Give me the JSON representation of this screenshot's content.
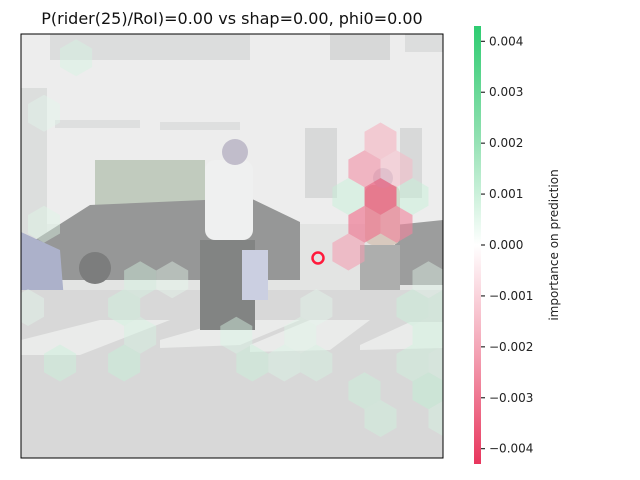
{
  "chart_data": {
    "type": "heatmap",
    "title": "P(rider(25)/RoI)=0.00 vs shap=0.00, phi0=0.00",
    "xlabel": "",
    "ylabel": "",
    "colorbar": {
      "label": "importance on prediction",
      "range": [
        -0.0043,
        0.0043
      ],
      "ticks": [
        "0.004",
        "0.003",
        "0.002",
        "0.001",
        "0.000",
        "−0.001",
        "−0.002",
        "−0.003",
        "−0.004"
      ],
      "tick_values": [
        0.004,
        0.003,
        0.002,
        0.001,
        0.0,
        -0.001,
        -0.002,
        -0.003,
        -0.004
      ],
      "colors": {
        "positive": "#2ecc71",
        "neutral": "#ffffff",
        "negative": "#e8365d"
      }
    },
    "background": "street scene with pedestrians on a crosswalk",
    "marker": {
      "label": "RoI center",
      "color": "#ff1a3c"
    },
    "hex_cells": [
      {
        "col": 1,
        "row": 1,
        "value": 0.0009
      },
      {
        "col": 0,
        "row": 3,
        "value": 0.0006
      },
      {
        "col": 13,
        "row": 3,
        "value": 0.0008
      },
      {
        "col": 11,
        "row": 4,
        "value": -0.0018
      },
      {
        "col": 10,
        "row": 5,
        "value": -0.0024
      },
      {
        "col": 11,
        "row": 5,
        "value": -0.0015
      },
      {
        "col": 10,
        "row": 6,
        "value": 0.0012
      },
      {
        "col": 11,
        "row": 6,
        "value": -0.0035
      },
      {
        "col": 12,
        "row": 6,
        "value": 0.0012
      },
      {
        "col": 0,
        "row": 7,
        "value": 0.0007
      },
      {
        "col": 10,
        "row": 7,
        "value": -0.003
      },
      {
        "col": 11,
        "row": 7,
        "value": -0.0026
      },
      {
        "col": 13,
        "row": 7,
        "value": 0.0004
      },
      {
        "col": 10,
        "row": 8,
        "value": -0.0021
      },
      {
        "col": 3,
        "row": 9,
        "value": 0.0009
      },
      {
        "col": 4,
        "row": 9,
        "value": 0.0005
      },
      {
        "col": 12,
        "row": 9,
        "value": 0.0006
      },
      {
        "col": 13,
        "row": 9,
        "value": 0.0009
      },
      {
        "col": 0,
        "row": 10,
        "value": 0.0006
      },
      {
        "col": 3,
        "row": 10,
        "value": 0.001
      },
      {
        "col": 9,
        "row": 10,
        "value": 0.0006
      },
      {
        "col": 12,
        "row": 10,
        "value": 0.0011
      },
      {
        "col": 13,
        "row": 10,
        "value": 0.001
      },
      {
        "col": 3,
        "row": 11,
        "value": 0.0009
      },
      {
        "col": 6,
        "row": 11,
        "value": 0.0008
      },
      {
        "col": 8,
        "row": 11,
        "value": 0.0007
      },
      {
        "col": 12,
        "row": 11,
        "value": 0.001
      },
      {
        "col": 1,
        "row": 12,
        "value": 0.0011
      },
      {
        "col": 3,
        "row": 12,
        "value": 0.0012
      },
      {
        "col": 7,
        "row": 12,
        "value": 0.0011
      },
      {
        "col": 8,
        "row": 12,
        "value": 0.0008
      },
      {
        "col": 9,
        "row": 12,
        "value": 0.0009
      },
      {
        "col": 12,
        "row": 12,
        "value": 0.001
      },
      {
        "col": 13,
        "row": 12,
        "value": 0.0009
      },
      {
        "col": 10,
        "row": 13,
        "value": 0.0011
      },
      {
        "col": 12,
        "row": 13,
        "value": 0.0013
      },
      {
        "col": 14,
        "row": 13,
        "value": 0.0009
      },
      {
        "col": 11,
        "row": 14,
        "value": 0.001
      },
      {
        "col": 13,
        "row": 14,
        "value": 0.0009
      }
    ],
    "grid": false,
    "legend": "colorbar-right"
  }
}
